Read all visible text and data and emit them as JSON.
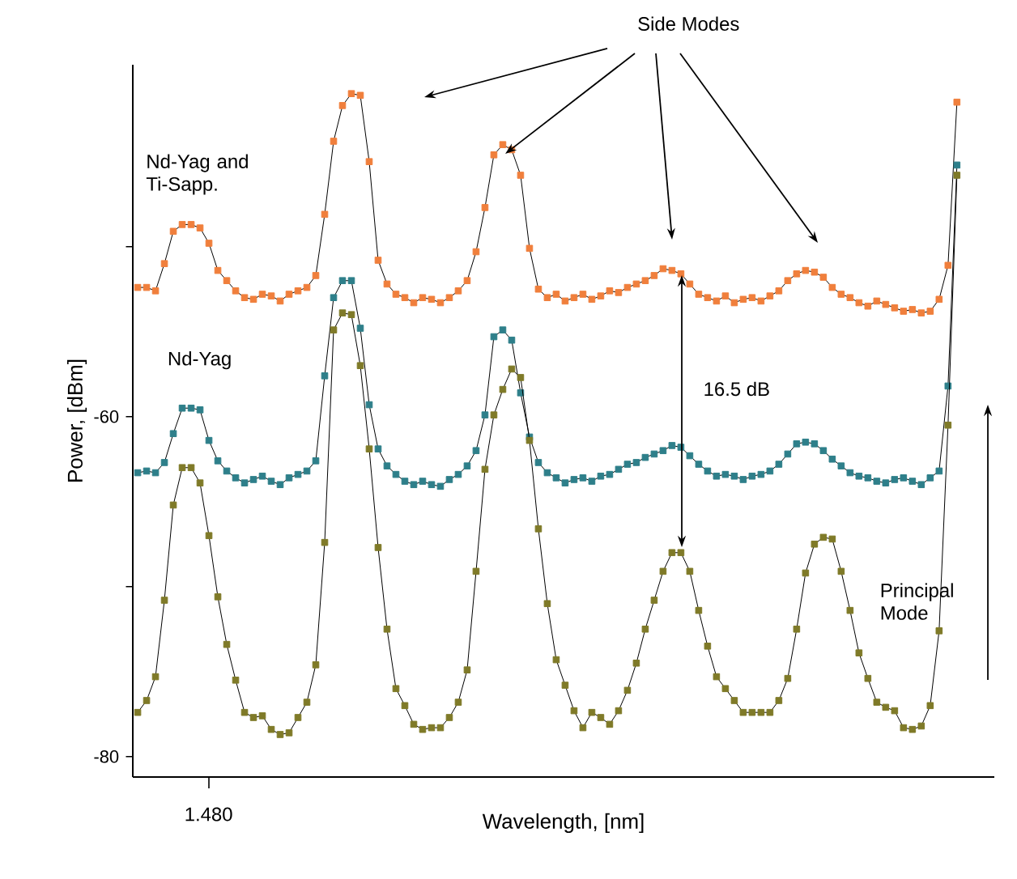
{
  "chart_data": {
    "type": "line",
    "xlabel": "Wavelength, [nm]",
    "ylabel": "Power, [dBm]",
    "categories": [
      null,
      null,
      null,
      null,
      null,
      null,
      null,
      null,
      null,
      null,
      null,
      null,
      null,
      null,
      null,
      null,
      null,
      null,
      null,
      null,
      null,
      null,
      null,
      null,
      null,
      null,
      null,
      null,
      null,
      null,
      null,
      null,
      null,
      null,
      null,
      null,
      null,
      null,
      null,
      null,
      null,
      null,
      null,
      null,
      null,
      null,
      null,
      null,
      null,
      null,
      null,
      null,
      null,
      null,
      null,
      null,
      null,
      null,
      null,
      null,
      null,
      null,
      null,
      null,
      null,
      null,
      null,
      null,
      null,
      null,
      null,
      null,
      null,
      null,
      null,
      null,
      null,
      null,
      null,
      null,
      null,
      null,
      null,
      null,
      null,
      null,
      null,
      null,
      null,
      null,
      null,
      null,
      null
    ],
    "ylim": [
      -81.2,
      -39.3
    ],
    "yticks": [
      {
        "value": -80,
        "label": "-80"
      },
      {
        "value": -70,
        "label": null
      },
      {
        "value": -60,
        "label": "-60"
      },
      {
        "value": -50,
        "label": null
      }
    ],
    "marker": "square",
    "line_style": "solid",
    "grid": false,
    "legend": false,
    "series": [
      {
        "name": "Nd-Yag and Ti-Sapp.",
        "color": "#f07f3c",
        "values": [
          -52.4,
          -52.4,
          -52.6,
          -51.0,
          -49.1,
          -48.7,
          -48.7,
          -48.9,
          -49.8,
          -51.4,
          -52.0,
          -52.6,
          -53.0,
          -53.1,
          -52.8,
          -52.9,
          -53.2,
          -52.8,
          -52.6,
          -52.4,
          -51.7,
          -48.1,
          -43.8,
          -41.7,
          -41.0,
          -41.1,
          -45.0,
          -50.8,
          -52.2,
          -52.8,
          -53.0,
          -53.3,
          -53.0,
          -53.1,
          -53.3,
          -53.0,
          -52.6,
          -52.0,
          -50.3,
          -47.7,
          -44.6,
          -44.0,
          -44.3,
          -45.8,
          -50.1,
          -52.5,
          -53.0,
          -52.8,
          -53.2,
          -53.0,
          -52.8,
          -53.1,
          -52.9,
          -52.6,
          -52.7,
          -52.4,
          -52.2,
          -52.0,
          -51.7,
          -51.3,
          -51.4,
          -51.6,
          -52.2,
          -52.8,
          -53.0,
          -53.2,
          -52.9,
          -53.3,
          -53.1,
          -53.0,
          -53.2,
          -52.9,
          -52.6,
          -52.0,
          -51.6,
          -51.4,
          -51.5,
          -51.8,
          -52.4,
          -52.8,
          -53.0,
          -53.3,
          -53.5,
          -53.2,
          -53.4,
          -53.6,
          -53.8,
          -53.7,
          -53.9,
          -53.8,
          -53.1,
          -51.1,
          -41.5
        ]
      },
      {
        "name": "Nd-Yag",
        "color": "#2e7f8a",
        "values": [
          -63.3,
          -63.2,
          -63.3,
          -62.7,
          -61.0,
          -59.5,
          -59.5,
          -59.6,
          -61.4,
          -62.6,
          -63.2,
          -63.6,
          -63.9,
          -63.7,
          -63.5,
          -63.8,
          -64.0,
          -63.6,
          -63.4,
          -63.2,
          -62.6,
          -57.6,
          -53.0,
          -52.0,
          -52.0,
          -54.8,
          -59.3,
          -61.9,
          -62.9,
          -63.4,
          -63.8,
          -64.0,
          -63.8,
          -64.0,
          -64.1,
          -63.7,
          -63.4,
          -62.9,
          -62.0,
          -59.9,
          -55.3,
          -54.9,
          -55.5,
          -58.6,
          -61.2,
          -62.7,
          -63.3,
          -63.6,
          -63.9,
          -63.7,
          -63.6,
          -63.8,
          -63.5,
          -63.4,
          -63.1,
          -62.8,
          -62.7,
          -62.4,
          -62.2,
          -62.0,
          -61.7,
          -61.8,
          -62.3,
          -62.8,
          -63.2,
          -63.5,
          -63.4,
          -63.5,
          -63.7,
          -63.5,
          -63.4,
          -63.2,
          -62.8,
          -62.2,
          -61.6,
          -61.5,
          -61.6,
          -62.0,
          -62.5,
          -62.9,
          -63.3,
          -63.5,
          -63.6,
          -63.8,
          -63.9,
          -63.7,
          -63.6,
          -63.8,
          -64.0,
          -63.6,
          -63.2,
          -58.2,
          -45.2
        ]
      },
      {
        "color": "#7f7a28",
        "values": [
          -77.4,
          -76.7,
          -75.3,
          -70.8,
          -65.2,
          -63.0,
          -63.0,
          -63.9,
          -67.0,
          -70.6,
          -73.4,
          -75.5,
          -77.4,
          -77.7,
          -77.6,
          -78.4,
          -78.7,
          -78.6,
          -77.7,
          -76.8,
          -74.6,
          -67.4,
          -54.9,
          -53.9,
          -54.0,
          -57.0,
          -61.9,
          -67.7,
          -72.5,
          -76.0,
          -77.0,
          -78.1,
          -78.4,
          -78.3,
          -78.3,
          -77.7,
          -76.8,
          -74.9,
          -69.1,
          -63.1,
          -59.9,
          -58.4,
          -57.2,
          -57.7,
          -61.4,
          -66.6,
          -71.0,
          -74.3,
          -75.8,
          -77.3,
          -78.3,
          -77.4,
          -77.7,
          -78.1,
          -77.3,
          -76.1,
          -74.5,
          -72.5,
          -70.8,
          -69.1,
          -68.0,
          -68.0,
          -69.1,
          -71.4,
          -73.5,
          -75.3,
          -76.0,
          -76.7,
          -77.4,
          -77.4,
          -77.4,
          -77.4,
          -76.7,
          -75.4,
          -72.5,
          -69.2,
          -67.5,
          -67.1,
          -67.2,
          -69.1,
          -71.4,
          -73.9,
          -75.4,
          -76.8,
          -77.1,
          -77.3,
          -78.3,
          -78.4,
          -78.2,
          -77.0,
          -72.6,
          -60.5,
          -45.8
        ]
      }
    ],
    "annotations": [
      "Side Modes",
      "16.5 dB",
      "Principal Mode",
      "1.480"
    ]
  }
}
